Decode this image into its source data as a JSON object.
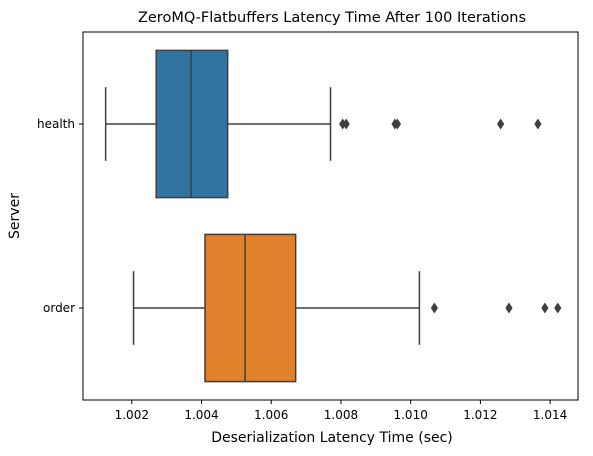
{
  "chart_data": {
    "type": "box",
    "title": "ZeroMQ-Flatbuffers Latency Time After 100 Iterations",
    "xlabel": "Deserialization Latency Time (sec)",
    "ylabel": "Server",
    "orientation": "horizontal",
    "xlim": [
      1.0006,
      1.0148
    ],
    "xticks": [
      "1.002",
      "1.004",
      "1.006",
      "1.008",
      "1.010",
      "1.012",
      "1.014"
    ],
    "categories": [
      "health",
      "order"
    ],
    "series": [
      {
        "name": "health",
        "color": "#3274a1",
        "whisker_low": 1.00125,
        "q1": 1.0027,
        "median": 1.0037,
        "q3": 1.00475,
        "whisker_high": 1.0077,
        "outliers": [
          1.00805,
          1.00815,
          1.00955,
          1.00962,
          1.01258,
          1.01365
        ]
      },
      {
        "name": "order",
        "color": "#e1812c",
        "whisker_low": 1.00205,
        "q1": 1.0041,
        "median": 1.00525,
        "q3": 1.0067,
        "whisker_high": 1.01025,
        "outliers": [
          1.01068,
          1.01282,
          1.01385,
          1.01422
        ]
      }
    ],
    "grid": false,
    "legend": "none"
  }
}
